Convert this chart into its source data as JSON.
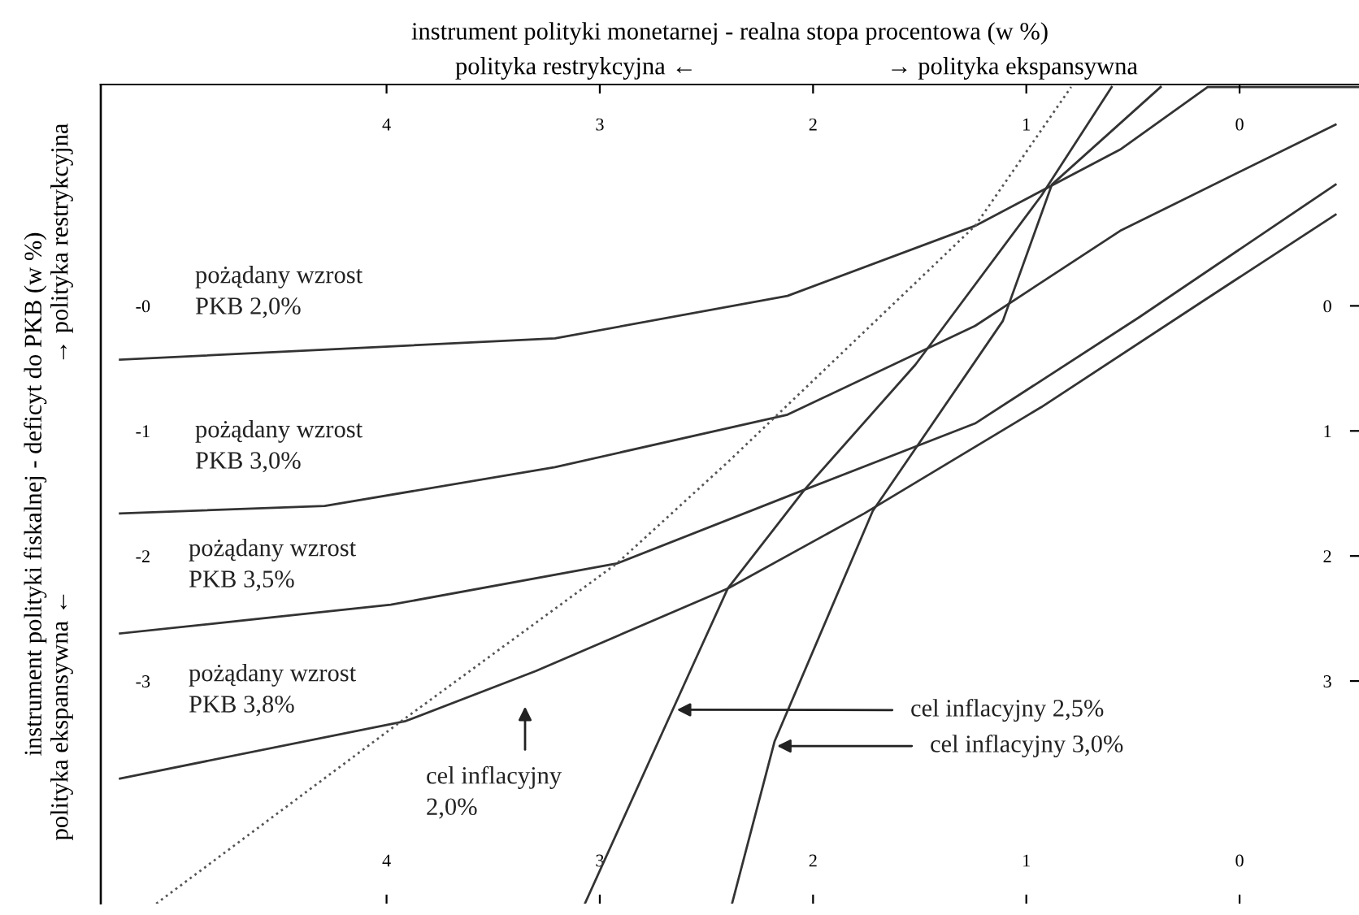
{
  "chart_data": {
    "type": "line",
    "x2label": "instrument polityki monetarnej - realna stopa procentowa (w %)",
    "ylabel": "instrument polityki fiskalnej - deficyt do PKB (w %)",
    "annotations": [
      "polityka restrykcyjna ←",
      "→ polityka ekspansywna",
      "polityka ekspansywna ←",
      "→ polityka restrykcyjna",
      {
        "text": "cel inflacyjny 2,5%",
        "x": 2.66,
        "y": -3.23
      },
      {
        "text": "cel inflacyjny 3,0%",
        "x": 2.19,
        "y": -3.52
      }
    ],
    "xlim": [
      5.34,
      -0.56
    ],
    "xticks": [
      4,
      3,
      2,
      1,
      0
    ],
    "x2lim": [
      5.34,
      -0.56
    ],
    "x2ticks": [
      4,
      3,
      2,
      1,
      0
    ],
    "ylim": [
      -4.78,
      1.77
    ],
    "yticks": [
      {
        "value": 0,
        "label": "-0"
      },
      -1,
      -2,
      -3
    ],
    "y2lim": [
      4.78,
      -1.77
    ],
    "y2ticks": [
      0,
      1,
      2,
      3
    ],
    "grid": false,
    "legend": false,
    "marker": "none",
    "series": [
      {
        "name": "pożądany wzrost\nPKB 2,0%",
        "color": "#333333",
        "line_style": "solid",
        "x": [
          5.25,
          3.21,
          2.12,
          1.24,
          0.56,
          0.15,
          -0.56
        ],
        "values": [
          -0.43,
          -0.26,
          0.08,
          0.64,
          1.25,
          1.75,
          1.75
        ]
      },
      {
        "name": "pożądany wzrost\nPKB 3,0%",
        "color": "#333333",
        "line_style": "solid",
        "x": [
          5.25,
          4.29,
          3.21,
          2.12,
          1.24,
          0.56,
          -0.45
        ],
        "values": [
          -1.66,
          -1.6,
          -1.29,
          -0.87,
          -0.16,
          0.6,
          1.45
        ]
      },
      {
        "name": "pożądany wzrost\nPKB 3,5%",
        "color": "#333333",
        "line_style": "solid",
        "x": [
          5.25,
          3.98,
          2.92,
          2.04,
          1.24,
          0.47,
          -0.45
        ],
        "values": [
          -2.62,
          -2.39,
          -2.06,
          -1.47,
          -0.94,
          -0.09,
          0.97
        ]
      },
      {
        "name": "pożądany wzrost\nPKB 3,8%",
        "color": "#333333",
        "line_style": "solid",
        "x": [
          5.25,
          3.91,
          3.3,
          2.4,
          1.76,
          0.93,
          0.17,
          -0.45
        ],
        "values": [
          -3.78,
          -3.32,
          -2.92,
          -2.26,
          -1.66,
          -0.81,
          0.04,
          0.73
        ]
      },
      {
        "name": "cel inflacyjny\n2,0%",
        "color": "#555555",
        "line_style": "dotted",
        "x": [
          5.08,
          3.93,
          2.92,
          2.4,
          1.24,
          0.79
        ],
        "values": [
          -4.78,
          -3.32,
          -2.06,
          -1.25,
          0.64,
          1.75
        ]
      },
      {
        "color": "#333333",
        "line_style": "solid",
        "x": [
          3.07,
          2.56,
          2.4,
          2.04,
          1.52,
          0.93,
          0.6
        ],
        "values": [
          -4.78,
          -2.86,
          -2.26,
          -1.47,
          -0.47,
          0.88,
          1.75
        ]
      },
      {
        "color": "#333333",
        "line_style": "solid",
        "x": [
          2.38,
          2.18,
          1.72,
          1.11,
          0.88,
          0.37
        ],
        "values": [
          -4.78,
          -3.48,
          -1.64,
          -0.12,
          0.97,
          1.75
        ]
      }
    ]
  }
}
